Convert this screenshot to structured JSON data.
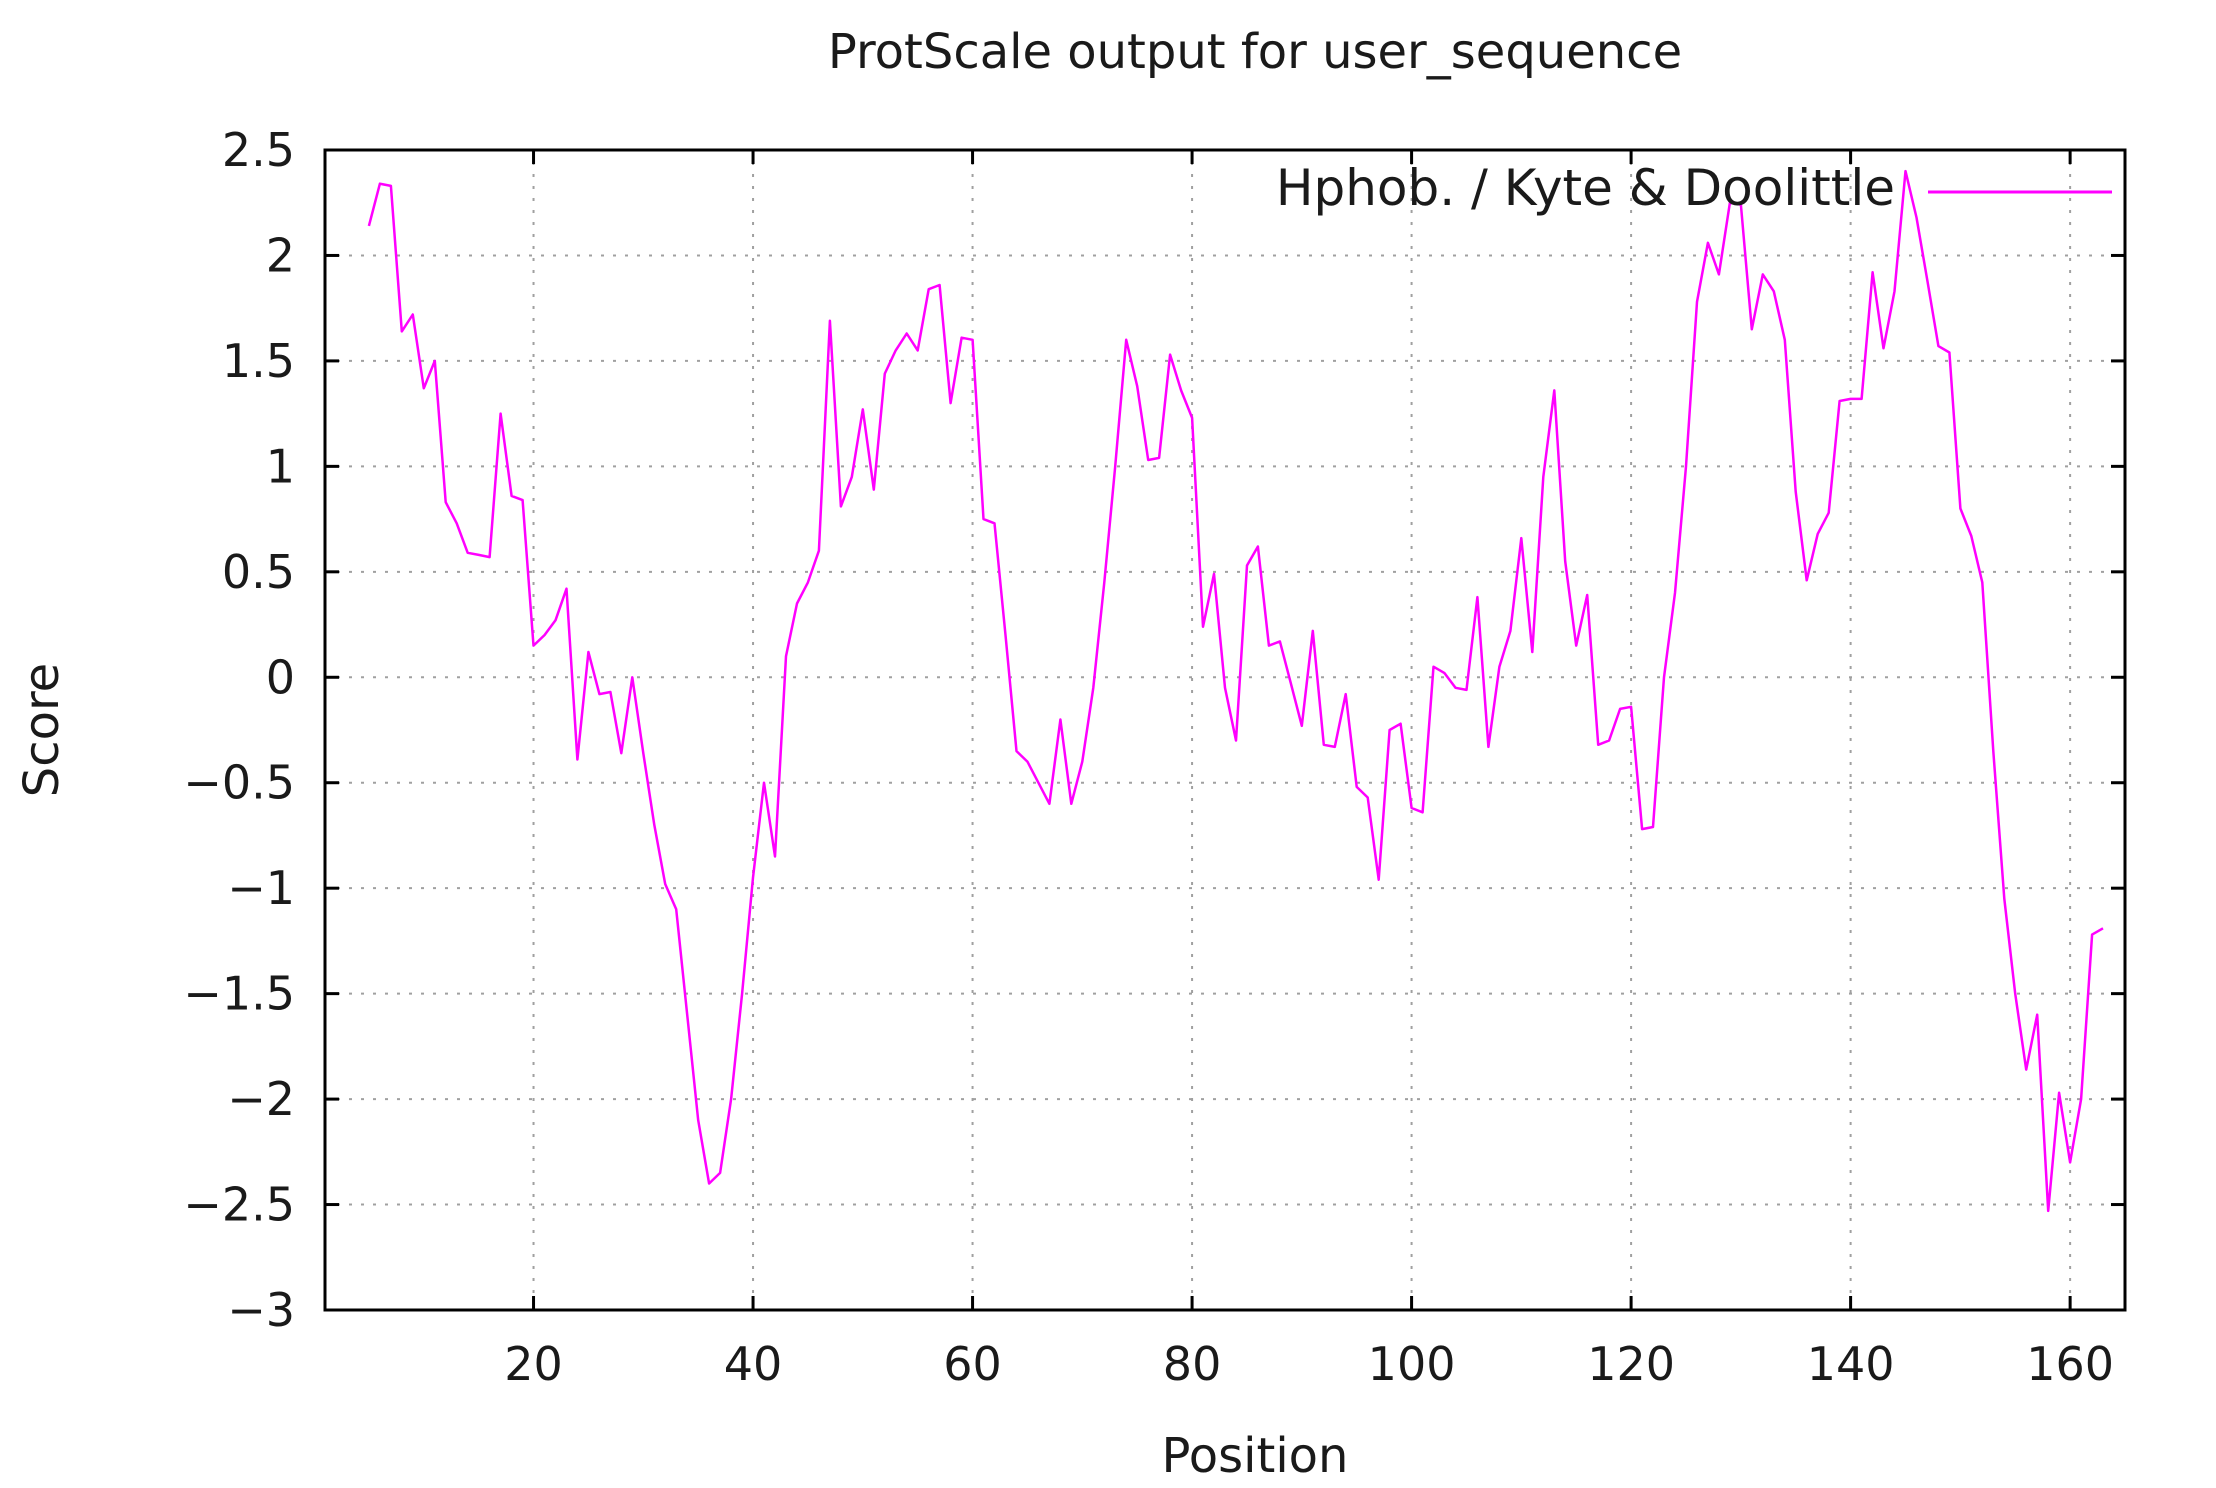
{
  "chart_data": {
    "type": "line",
    "title": "ProtScale output for user_sequence",
    "xlabel": "Position",
    "ylabel": "Score",
    "xlim": [
      1,
      165
    ],
    "ylim": [
      -3,
      2.5
    ],
    "xticks": [
      "20",
      "40",
      "60",
      "80",
      "100",
      "120",
      "140",
      "160"
    ],
    "yticks": [
      "2.5",
      "2",
      "1.5",
      "1",
      "0.5",
      "0",
      "-0.5",
      "-1",
      "-1.5",
      "-2",
      "-2.5",
      "-3"
    ],
    "grid": true,
    "legend_position": "top-right",
    "colors": {
      "series": "#ff00ff",
      "frame": "#000000",
      "grid": "#a0a0a0"
    },
    "series": [
      {
        "name": "Hphob. / Kyte & Doolittle",
        "x": [
          5,
          6,
          7,
          8,
          9,
          10,
          11,
          12,
          13,
          14,
          15,
          16,
          17,
          18,
          19,
          20,
          21,
          22,
          23,
          24,
          25,
          26,
          27,
          28,
          29,
          30,
          31,
          32,
          33,
          34,
          35,
          36,
          37,
          38,
          39,
          40,
          41,
          42,
          43,
          44,
          45,
          46,
          47,
          48,
          49,
          50,
          51,
          52,
          53,
          54,
          55,
          56,
          57,
          58,
          59,
          60,
          61,
          62,
          63,
          64,
          65,
          66,
          67,
          68,
          69,
          70,
          71,
          72,
          73,
          74,
          75,
          76,
          77,
          78,
          79,
          80,
          81,
          82,
          83,
          84,
          85,
          86,
          87,
          88,
          89,
          90,
          91,
          92,
          93,
          94,
          95,
          96,
          97,
          98,
          99,
          100,
          101,
          102,
          103,
          104,
          105,
          106,
          107,
          108,
          109,
          110,
          111,
          112,
          113,
          114,
          115,
          116,
          117,
          118,
          119,
          120,
          121,
          122,
          123,
          124,
          125,
          126,
          127,
          128,
          129,
          130,
          131,
          132,
          133,
          134,
          135,
          136,
          137,
          138,
          139,
          140,
          141,
          142,
          143,
          144,
          145,
          146,
          147,
          148,
          149,
          150,
          151,
          152,
          153,
          154,
          155,
          156,
          157,
          158,
          159,
          160,
          161,
          162,
          163
        ],
        "values": [
          2.14,
          2.34,
          2.33,
          1.64,
          1.72,
          1.37,
          1.5,
          0.83,
          0.73,
          0.59,
          0.58,
          0.57,
          1.25,
          0.86,
          0.84,
          0.15,
          0.2,
          0.27,
          0.42,
          -0.39,
          0.12,
          -0.08,
          -0.07,
          -0.36,
          0.0,
          -0.36,
          -0.7,
          -0.98,
          -1.1,
          -1.6,
          -2.1,
          -2.4,
          -2.35,
          -2.0,
          -1.5,
          -0.95,
          -0.5,
          -0.85,
          0.1,
          0.35,
          0.45,
          0.6,
          1.69,
          0.81,
          0.95,
          1.27,
          0.89,
          1.44,
          1.55,
          1.63,
          1.55,
          1.84,
          1.86,
          1.3,
          1.61,
          1.6,
          0.75,
          0.73,
          0.2,
          -0.35,
          -0.4,
          -0.5,
          -0.6,
          -0.2,
          -0.6,
          -0.4,
          -0.05,
          0.45,
          1.0,
          1.6,
          1.38,
          1.03,
          1.04,
          1.53,
          1.36,
          1.23,
          0.24,
          0.49,
          -0.05,
          -0.3,
          0.53,
          0.62,
          0.15,
          0.17,
          -0.03,
          -0.23,
          0.22,
          -0.32,
          -0.33,
          -0.08,
          -0.52,
          -0.57,
          -0.96,
          -0.25,
          -0.22,
          -0.62,
          -0.64,
          0.05,
          0.02,
          -0.05,
          -0.06,
          0.38,
          -0.33,
          0.05,
          0.22,
          0.66,
          0.12,
          0.95,
          1.36,
          0.55,
          0.15,
          0.39,
          -0.32,
          -0.3,
          -0.15,
          -0.14,
          -0.72,
          -0.71,
          0.0,
          0.4,
          1.0,
          1.78,
          2.06,
          1.91,
          2.25,
          2.24,
          1.65,
          1.91,
          1.83,
          1.6,
          0.88,
          0.46,
          0.68,
          0.78,
          1.31,
          1.32,
          1.32,
          1.92,
          1.56,
          1.83,
          2.4,
          2.18,
          1.88,
          1.57,
          1.54,
          0.8,
          0.67,
          0.45,
          -0.35,
          -1.05,
          -1.5,
          -1.86,
          -1.6,
          -2.53,
          -1.97,
          -2.3,
          -2.0,
          -1.22,
          -1.19
        ]
      }
    ]
  }
}
